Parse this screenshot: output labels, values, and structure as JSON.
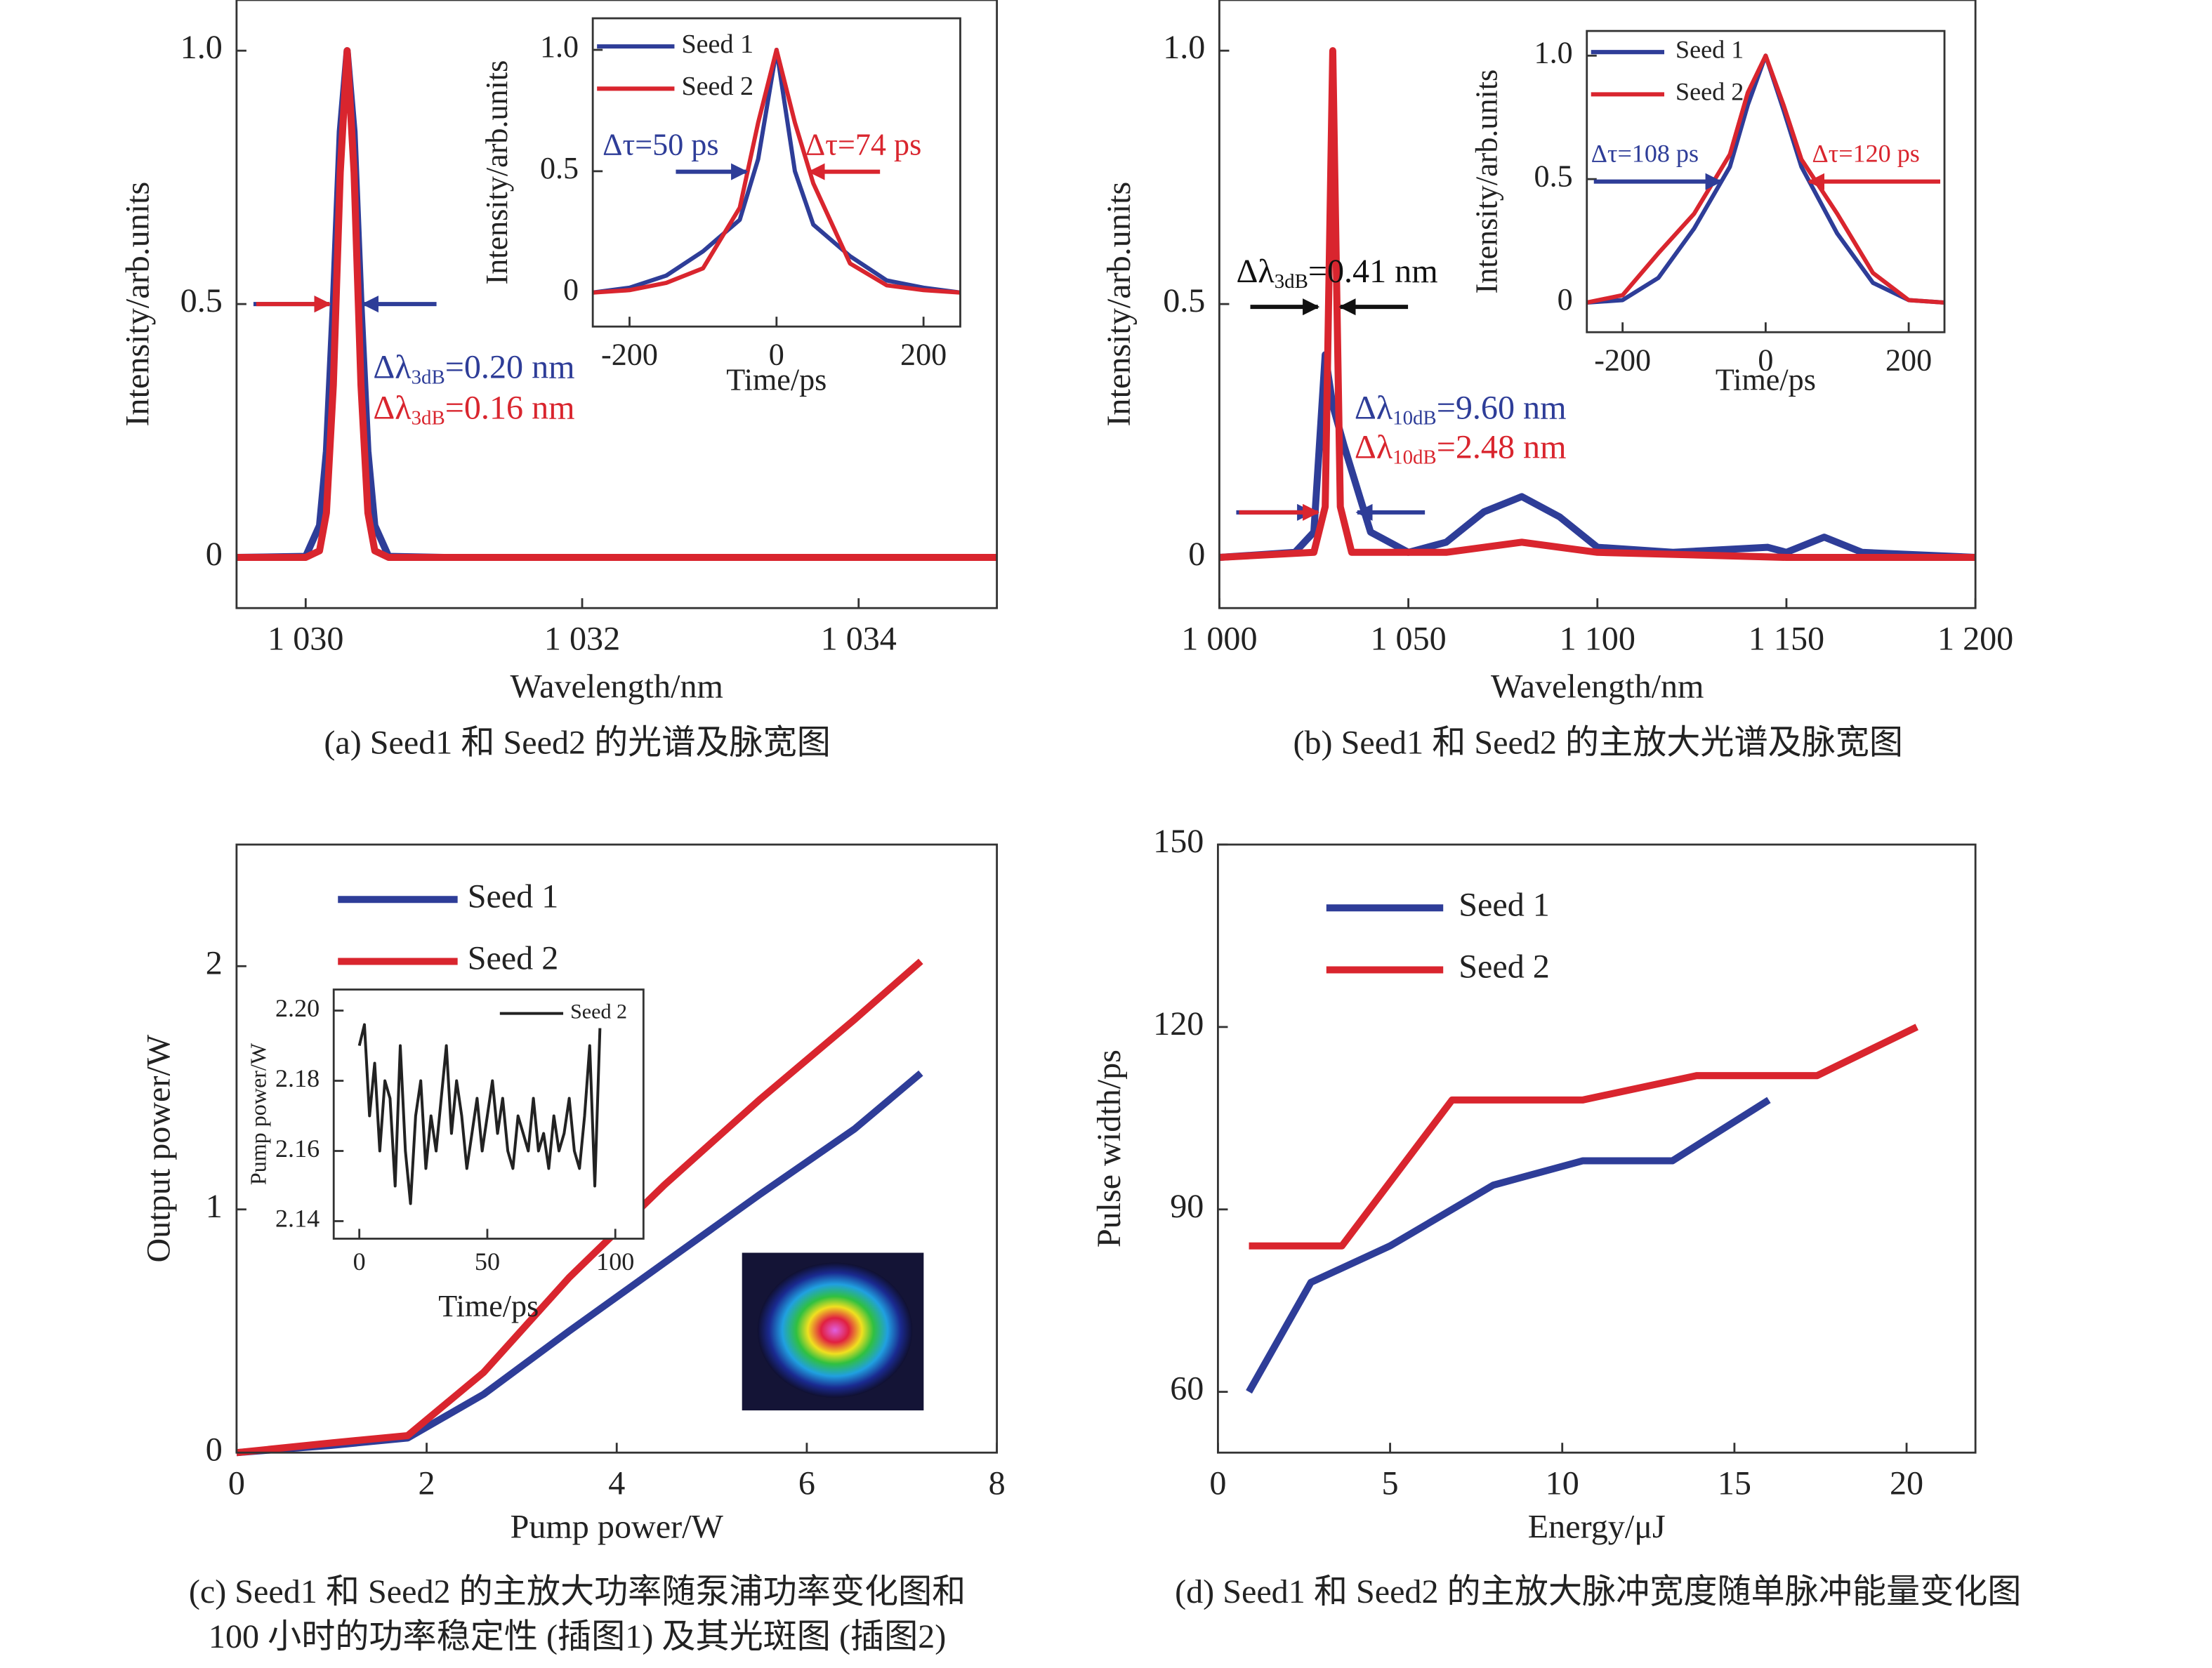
{
  "chart_data": [
    {
      "type": "line",
      "caption": [
        "(a) Seed1 和 Seed2 的光谱及脉宽图"
      ],
      "xlabel": "Wavelength/nm",
      "ylabel": "Intensity/arb.units",
      "xlim": [
        1029.5,
        1035
      ],
      "xticks": [
        {
          "value": 1030,
          "label": "1 030"
        },
        {
          "value": 1032,
          "label": "1 032"
        },
        {
          "value": 1034,
          "label": "1 034"
        }
      ],
      "ylim": [
        -0.1,
        1.1
      ],
      "yticks": [
        0,
        0.5,
        {
          "value": 1,
          "label": "1.0"
        }
      ],
      "x": [
        1029.5,
        1030,
        1030.1,
        1030.15,
        1030.2,
        1030.25,
        1030.3,
        1030.35,
        1030.4,
        1030.45,
        1030.5,
        1030.6,
        1031,
        1035
      ],
      "series": [
        {
          "name": "Seed 1",
          "color": "#2e3d98",
          "values": [
            0,
            0.002,
            0.063,
            0.21,
            0.5,
            0.84,
            1,
            0.84,
            0.5,
            0.21,
            0.063,
            0.002,
            0,
            0
          ]
        },
        {
          "name": "Seed 2",
          "color": "#d9252e",
          "values": [
            0,
            0,
            0.013,
            0.088,
            0.34,
            0.76,
            1,
            0.76,
            0.34,
            0.088,
            0.013,
            0,
            0,
            0
          ]
        }
      ],
      "annotations": [
        {
          "parts": [
            "Δλ",
            "3dB",
            "=0.20 nm"
          ],
          "color": "#2e3d98"
        },
        {
          "parts": [
            "Δλ",
            "3dB",
            "=0.16 nm"
          ],
          "color": "#d9252e"
        }
      ]
    },
    {
      "type": "line",
      "xlabel": "Time/ps",
      "ylabel": "Intensity/arb.units",
      "xlim": [
        -250,
        250
      ],
      "xticks": [
        -200,
        0,
        200
      ],
      "ylim": [
        -0.14,
        1.13
      ],
      "yticks": [
        0,
        0.5,
        {
          "value": 1,
          "label": "1.0"
        }
      ],
      "x": [
        -250,
        -200,
        -150,
        -100,
        -50,
        -25,
        0,
        25,
        50,
        100,
        150,
        200,
        250
      ],
      "legend": "upper left",
      "series": [
        {
          "name": "Seed 1",
          "color": "#2e3d98",
          "values": [
            0,
            0.02,
            0.07,
            0.17,
            0.3,
            0.55,
            1,
            0.5,
            0.28,
            0.15,
            0.05,
            0.02,
            0
          ]
        },
        {
          "name": "Seed 2",
          "color": "#d9252e",
          "values": [
            0,
            0.01,
            0.04,
            0.1,
            0.35,
            0.7,
            1,
            0.7,
            0.45,
            0.12,
            0.03,
            0.01,
            0
          ]
        }
      ],
      "annotations": [
        {
          "parts": [
            "Δτ=50 ps"
          ],
          "color": "#2e3d98"
        },
        {
          "parts": [
            "Δτ=74 ps"
          ],
          "color": "#d9252e"
        }
      ]
    },
    {
      "type": "line",
      "caption": [
        "(b) Seed1 和 Seed2 的主放大光谱及脉宽图"
      ],
      "xlabel": "Wavelength/nm",
      "ylabel": "Intensity/arb.units",
      "xlim": [
        1000,
        1200
      ],
      "xticks": [
        {
          "value": 1000,
          "label": "1 000"
        },
        {
          "value": 1050,
          "label": "1 050"
        },
        {
          "value": 1100,
          "label": "1 100"
        },
        {
          "value": 1150,
          "label": "1 150"
        },
        {
          "value": 1200,
          "label": "1 200"
        }
      ],
      "ylim": [
        -0.1,
        1.1
      ],
      "yticks": [
        0,
        0.5,
        {
          "value": 1,
          "label": "1.0"
        }
      ],
      "series": [
        {
          "name": "Seed 1",
          "color": "#2e3d98",
          "x": [
            1000,
            1020,
            1025,
            1028,
            1030,
            1033,
            1040,
            1050,
            1060,
            1070,
            1080,
            1090,
            1100,
            1120,
            1145,
            1150,
            1160,
            1170,
            1200
          ],
          "values": [
            0,
            0.01,
            0.05,
            0.4,
            0.3,
            0.22,
            0.05,
            0.01,
            0.03,
            0.09,
            0.12,
            0.08,
            0.02,
            0.01,
            0.02,
            0.01,
            0.04,
            0.01,
            0
          ]
        },
        {
          "name": "Seed 2",
          "color": "#d9252e",
          "x": [
            1000,
            1025,
            1028,
            1030,
            1032,
            1035,
            1060,
            1080,
            1100,
            1150,
            1200
          ],
          "values": [
            0,
            0.01,
            0.1,
            1,
            0.1,
            0.01,
            0.01,
            0.03,
            0.01,
            0,
            0
          ]
        }
      ],
      "annotations": [
        {
          "parts": [
            "Δλ",
            "3dB",
            "=0.41 nm"
          ],
          "color": "#111111"
        },
        {
          "parts": [
            "Δλ",
            "10dB",
            "=9.60 nm"
          ],
          "color": "#2e3d98"
        },
        {
          "parts": [
            "Δλ",
            "10dB",
            "=2.48 nm"
          ],
          "color": "#d9252e"
        }
      ]
    },
    {
      "type": "line",
      "xlabel": "Time/ps",
      "ylabel": "Intensity/arb.units",
      "xlim": [
        -250,
        250
      ],
      "xticks": [
        -200,
        0,
        200
      ],
      "ylim": [
        -0.12,
        1.1
      ],
      "yticks": [
        0,
        0.5,
        {
          "value": 1,
          "label": "1.0"
        }
      ],
      "x": [
        -250,
        -200,
        -150,
        -100,
        -50,
        -25,
        0,
        25,
        50,
        100,
        150,
        200,
        250
      ],
      "legend": "upper left",
      "series": [
        {
          "name": "Seed 1",
          "color": "#2e3d98",
          "values": [
            0,
            0.01,
            0.1,
            0.3,
            0.55,
            0.8,
            1,
            0.78,
            0.55,
            0.28,
            0.08,
            0.01,
            0
          ]
        },
        {
          "name": "Seed 2",
          "color": "#d9252e",
          "values": [
            0,
            0.03,
            0.2,
            0.36,
            0.6,
            0.85,
            1,
            0.8,
            0.58,
            0.36,
            0.12,
            0.01,
            0
          ]
        }
      ],
      "annotations": [
        {
          "parts": [
            "Δτ=108 ps"
          ],
          "color": "#2e3d98"
        },
        {
          "parts": [
            "Δτ=120 ps"
          ],
          "color": "#d9252e"
        }
      ]
    },
    {
      "type": "line",
      "caption": [
        "(c) Seed1 和 Seed2 的主放大功率随泵浦功率变化图和",
        "100 小时的功率稳定性 (插图1) 及其光斑图 (插图2)"
      ],
      "xlabel": "Pump power/W",
      "ylabel": "Output power/W",
      "xlim": [
        0,
        8
      ],
      "xticks": [
        0,
        2,
        4,
        6,
        8
      ],
      "ylim": [
        0,
        2.5
      ],
      "yticks": [
        0,
        1,
        2
      ],
      "x": [
        0,
        1,
        1.8,
        2.6,
        3.5,
        4.5,
        5.5,
        6.5,
        7.2
      ],
      "legend": "upper left",
      "series": [
        {
          "name": "Seed 1",
          "color": "#2e3d98",
          "values": [
            0,
            0.03,
            0.06,
            0.24,
            0.5,
            0.78,
            1.06,
            1.33,
            1.56
          ]
        },
        {
          "name": "Seed 2",
          "color": "#d9252e",
          "values": [
            0,
            0.04,
            0.07,
            0.33,
            0.72,
            1.1,
            1.45,
            1.78,
            2.02
          ]
        }
      ]
    },
    {
      "type": "line",
      "xlabel": "Time/ps",
      "ylabel": "Pump power/W",
      "xlim": [
        -10,
        111
      ],
      "xticks": [
        0,
        50,
        100
      ],
      "ylim": [
        2.135,
        2.206
      ],
      "yticks": [
        2.14,
        2.16,
        2.18,
        {
          "value": 2.2,
          "label": "2.20"
        }
      ],
      "x": [
        0,
        2,
        4,
        6,
        8,
        10,
        12,
        14,
        16,
        18,
        20,
        22,
        24,
        26,
        28,
        30,
        32,
        34,
        36,
        38,
        40,
        42,
        44,
        46,
        48,
        50,
        52,
        54,
        56,
        58,
        60,
        62,
        64,
        66,
        68,
        70,
        72,
        74,
        76,
        78,
        80,
        82,
        84,
        86,
        88,
        90,
        92,
        94
      ],
      "legend": "upper right",
      "series": [
        {
          "name": "Seed 2",
          "color": "#222222",
          "values": [
            2.19,
            2.196,
            2.17,
            2.185,
            2.16,
            2.18,
            2.175,
            2.15,
            2.19,
            2.16,
            2.145,
            2.17,
            2.18,
            2.155,
            2.17,
            2.16,
            2.175,
            2.19,
            2.165,
            2.18,
            2.17,
            2.155,
            2.165,
            2.175,
            2.16,
            2.17,
            2.18,
            2.165,
            2.175,
            2.16,
            2.155,
            2.17,
            2.165,
            2.16,
            2.175,
            2.16,
            2.165,
            2.155,
            2.17,
            2.16,
            2.165,
            2.175,
            2.16,
            2.155,
            2.17,
            2.19,
            2.15,
            2.195
          ]
        }
      ]
    },
    {
      "type": "line",
      "caption": [
        "(d) Seed1 和 Seed2 的主放大脉冲宽度随单脉冲能量变化图"
      ],
      "xlabel": "Energy/μJ",
      "ylabel": "Pulse width/ps",
      "xlim": [
        0,
        22
      ],
      "xticks": [
        0,
        5,
        10,
        15,
        20
      ],
      "ylim": [
        50,
        150
      ],
      "yticks": [
        60,
        90,
        120,
        150
      ],
      "legend": "upper left",
      "series": [
        {
          "name": "Seed 1",
          "color": "#2e3d98",
          "x": [
            0.9,
            2.7,
            5,
            8,
            10.6,
            13.2,
            16
          ],
          "values": [
            60,
            78,
            84,
            94,
            98,
            98,
            108
          ]
        },
        {
          "name": "Seed 2",
          "color": "#d9252e",
          "x": [
            0.9,
            3.6,
            6.8,
            10.6,
            13.9,
            17.4,
            20.3
          ],
          "values": [
            84,
            84,
            108,
            108,
            112,
            112,
            120
          ]
        }
      ]
    }
  ]
}
